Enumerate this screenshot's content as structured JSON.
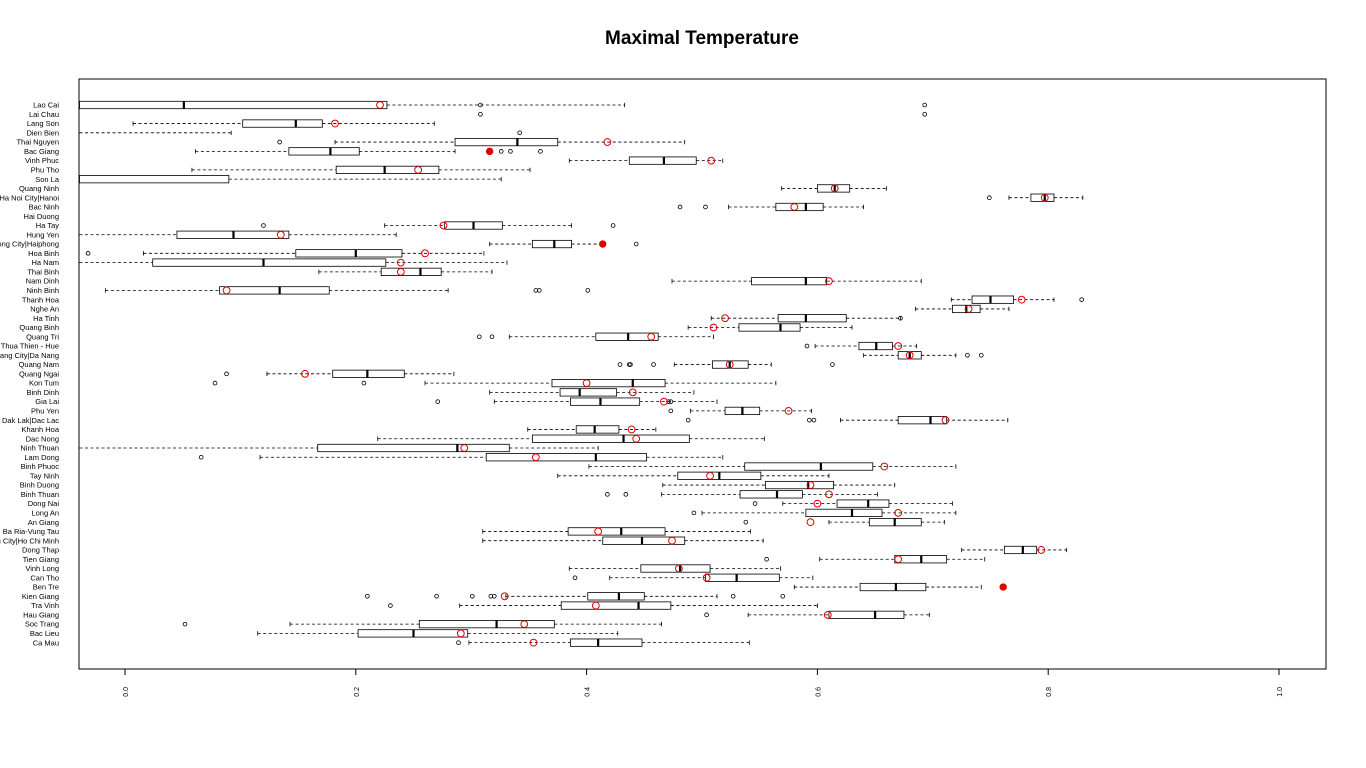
{
  "chart_data": {
    "type": "boxplot",
    "orientation": "horizontal",
    "title": "Maximal Temperature",
    "xlabel": "",
    "ylabel": "",
    "xlim": [
      0,
      1
    ],
    "xticks": [
      "0.0",
      "0.2",
      "0.4",
      "0.6",
      "0.8",
      "1.0"
    ],
    "colors": {
      "box": "#000000",
      "median": "#000000",
      "mean_marker": "#e00000",
      "highlight": "#e00000"
    },
    "series": [
      {
        "name": "Lao Cai",
        "whisker_low": -0.05,
        "q1": -0.05,
        "median": 0.051,
        "q3": 0.227,
        "whisker_high": 0.433,
        "mean": 0.221,
        "outliers": [
          0.308,
          0.693
        ]
      },
      {
        "name": "Lai Chau",
        "whisker_low": null,
        "q1": null,
        "median": null,
        "q3": null,
        "whisker_high": null,
        "mean": null,
        "outliers": [
          0.308,
          0.693
        ]
      },
      {
        "name": "Lang Son",
        "whisker_low": 0.007,
        "q1": 0.102,
        "median": 0.148,
        "q3": 0.171,
        "whisker_high": 0.268,
        "mean": 0.182,
        "outliers": []
      },
      {
        "name": "Dien Bien",
        "whisker_low": -0.05,
        "q1": null,
        "median": null,
        "q3": null,
        "whisker_high": 0.092,
        "mean": null,
        "outliers": [
          0.342
        ]
      },
      {
        "name": "Thai Nguyen",
        "whisker_low": 0.182,
        "q1": 0.286,
        "median": 0.34,
        "q3": 0.375,
        "whisker_high": 0.485,
        "mean": 0.418,
        "outliers": [
          0.134
        ]
      },
      {
        "name": "Bac Giang",
        "whisker_low": 0.061,
        "q1": 0.142,
        "median": 0.178,
        "q3": 0.203,
        "whisker_high": 0.286,
        "mean": 0.316,
        "outliers": [
          0.326,
          0.334,
          0.36
        ]
      },
      {
        "name": "Vinh Phuc",
        "whisker_low": 0.385,
        "q1": 0.437,
        "median": 0.467,
        "q3": 0.495,
        "whisker_high": 0.518,
        "mean": 0.508,
        "outliers": []
      },
      {
        "name": "Phu Tho",
        "whisker_low": 0.058,
        "q1": 0.183,
        "median": 0.225,
        "q3": 0.272,
        "whisker_high": 0.351,
        "mean": 0.254,
        "outliers": []
      },
      {
        "name": "Son La",
        "whisker_low": -0.05,
        "q1": -0.05,
        "median": null,
        "q3": 0.09,
        "whisker_high": 0.326,
        "mean": null,
        "outliers": []
      },
      {
        "name": "Quang Ninh",
        "whisker_low": 0.569,
        "q1": 0.6,
        "median": 0.615,
        "q3": 0.628,
        "whisker_high": 0.66,
        "mean": 0.615,
        "outliers": []
      },
      {
        "name": "Ha Noi City|Hanoi",
        "whisker_low": 0.766,
        "q1": 0.785,
        "median": 0.797,
        "q3": 0.805,
        "whisker_high": 0.83,
        "mean": 0.797,
        "outliers": [
          0.749
        ]
      },
      {
        "name": "Bac Ninh",
        "whisker_low": 0.523,
        "q1": 0.564,
        "median": 0.59,
        "q3": 0.605,
        "whisker_high": 0.64,
        "mean": 0.58,
        "outliers": [
          0.481,
          0.503
        ]
      },
      {
        "name": "Hai Duong",
        "whisker_low": null,
        "q1": null,
        "median": null,
        "q3": null,
        "whisker_high": null,
        "mean": null,
        "outliers": []
      },
      {
        "name": "Ha Tay",
        "whisker_low": 0.225,
        "q1": 0.277,
        "median": 0.302,
        "q3": 0.327,
        "whisker_high": 0.387,
        "mean": 0.276,
        "outliers": [
          0.12,
          0.423
        ]
      },
      {
        "name": "Hung Yen",
        "whisker_low": -0.05,
        "q1": 0.045,
        "median": 0.094,
        "q3": 0.142,
        "whisker_high": 0.235,
        "mean": 0.135,
        "outliers": []
      },
      {
        "name": "Hai Phong City|Haiphong",
        "whisker_low": 0.316,
        "q1": 0.353,
        "median": 0.372,
        "q3": 0.387,
        "whisker_high": 0.413,
        "mean": 0.414,
        "outliers": [
          0.443
        ]
      },
      {
        "name": "Hoa Binh",
        "whisker_low": 0.016,
        "q1": 0.148,
        "median": 0.2,
        "q3": 0.24,
        "whisker_high": 0.311,
        "mean": 0.26,
        "outliers": [
          -0.032
        ]
      },
      {
        "name": "Ha Nam",
        "whisker_low": -0.05,
        "q1": 0.024,
        "median": 0.12,
        "q3": 0.226,
        "whisker_high": 0.331,
        "mean": 0.239,
        "outliers": []
      },
      {
        "name": "Thai Binh",
        "whisker_low": 0.168,
        "q1": 0.222,
        "median": 0.256,
        "q3": 0.274,
        "whisker_high": 0.318,
        "mean": 0.239,
        "outliers": []
      },
      {
        "name": "Nam Dinh",
        "whisker_low": 0.474,
        "q1": 0.543,
        "median": 0.59,
        "q3": 0.608,
        "whisker_high": 0.69,
        "mean": 0.61,
        "outliers": []
      },
      {
        "name": "Ninh Binh",
        "whisker_low": -0.017,
        "q1": 0.082,
        "median": 0.134,
        "q3": 0.177,
        "whisker_high": 0.28,
        "mean": 0.088,
        "outliers": [
          0.356,
          0.359,
          0.401
        ]
      },
      {
        "name": "Thanh Hoa",
        "whisker_low": 0.716,
        "q1": 0.734,
        "median": 0.75,
        "q3": 0.77,
        "whisker_high": 0.805,
        "mean": 0.777,
        "outliers": [
          0.829
        ]
      },
      {
        "name": "Nghe An",
        "whisker_low": 0.685,
        "q1": 0.717,
        "median": 0.729,
        "q3": 0.741,
        "whisker_high": 0.766,
        "mean": 0.731,
        "outliers": []
      },
      {
        "name": "Ha Tinh",
        "whisker_low": 0.508,
        "q1": 0.566,
        "median": 0.59,
        "q3": 0.625,
        "whisker_high": 0.672,
        "mean": 0.52,
        "outliers": [
          0.672
        ]
      },
      {
        "name": "Quang Binh",
        "whisker_low": 0.488,
        "q1": 0.532,
        "median": 0.568,
        "q3": 0.585,
        "whisker_high": 0.63,
        "mean": 0.51,
        "outliers": []
      },
      {
        "name": "Quang Tri",
        "whisker_low": 0.333,
        "q1": 0.408,
        "median": 0.436,
        "q3": 0.462,
        "whisker_high": 0.51,
        "mean": 0.456,
        "outliers": [
          0.307,
          0.318
        ]
      },
      {
        "name": "Thua Thien - Hue",
        "whisker_low": 0.598,
        "q1": 0.636,
        "median": 0.651,
        "q3": 0.665,
        "whisker_high": 0.686,
        "mean": 0.67,
        "outliers": [
          0.591
        ]
      },
      {
        "name": "Da Nang City|Da Nang",
        "whisker_low": 0.64,
        "q1": 0.67,
        "median": 0.68,
        "q3": 0.69,
        "whisker_high": 0.72,
        "mean": 0.68,
        "outliers": [
          0.73,
          0.742
        ]
      },
      {
        "name": "Quang Nam",
        "whisker_low": 0.476,
        "q1": 0.509,
        "median": 0.524,
        "q3": 0.54,
        "whisker_high": 0.56,
        "mean": 0.524,
        "outliers": [
          0.429,
          0.437,
          0.438,
          0.458,
          0.613
        ]
      },
      {
        "name": "Quang Ngai",
        "whisker_low": 0.123,
        "q1": 0.18,
        "median": 0.21,
        "q3": 0.242,
        "whisker_high": 0.285,
        "mean": 0.156,
        "outliers": [
          0.088
        ]
      },
      {
        "name": "Kon Tum",
        "whisker_low": 0.26,
        "q1": 0.37,
        "median": 0.44,
        "q3": 0.468,
        "whisker_high": 0.564,
        "mean": 0.4,
        "outliers": [
          0.078,
          0.207
        ]
      },
      {
        "name": "Binh Dinh",
        "whisker_low": 0.316,
        "q1": 0.377,
        "median": 0.394,
        "q3": 0.426,
        "whisker_high": 0.493,
        "mean": 0.44,
        "outliers": []
      },
      {
        "name": "Gia Lai",
        "whisker_low": 0.32,
        "q1": 0.386,
        "median": 0.412,
        "q3": 0.446,
        "whisker_high": 0.513,
        "mean": 0.467,
        "outliers": [
          0.271,
          0.471,
          0.473
        ]
      },
      {
        "name": "Phu Yen",
        "whisker_low": 0.49,
        "q1": 0.52,
        "median": 0.535,
        "q3": 0.55,
        "whisker_high": 0.595,
        "mean": 0.575,
        "outliers": [
          0.473
        ]
      },
      {
        "name": "Dak Lak|Dac Lac",
        "whisker_low": 0.62,
        "q1": 0.67,
        "median": 0.698,
        "q3": 0.712,
        "whisker_high": 0.765,
        "mean": 0.711,
        "outliers": [
          0.488,
          0.593,
          0.597
        ]
      },
      {
        "name": "Khanh Hoa",
        "whisker_low": 0.349,
        "q1": 0.391,
        "median": 0.407,
        "q3": 0.428,
        "whisker_high": 0.46,
        "mean": 0.439,
        "outliers": []
      },
      {
        "name": "Dac Nong",
        "whisker_low": 0.219,
        "q1": 0.353,
        "median": 0.432,
        "q3": 0.489,
        "whisker_high": 0.554,
        "mean": 0.443,
        "outliers": []
      },
      {
        "name": "Ninh Thuan",
        "whisker_low": -0.05,
        "q1": 0.167,
        "median": 0.288,
        "q3": 0.333,
        "whisker_high": 0.41,
        "mean": 0.294,
        "outliers": []
      },
      {
        "name": "Lam Dong",
        "whisker_low": 0.117,
        "q1": 0.313,
        "median": 0.408,
        "q3": 0.452,
        "whisker_high": 0.518,
        "mean": 0.356,
        "outliers": [
          0.066
        ]
      },
      {
        "name": "Binh Phuoc",
        "whisker_low": 0.402,
        "q1": 0.537,
        "median": 0.603,
        "q3": 0.648,
        "whisker_high": 0.72,
        "mean": 0.658,
        "outliers": []
      },
      {
        "name": "Tay Ninh",
        "whisker_low": 0.375,
        "q1": 0.479,
        "median": 0.515,
        "q3": 0.551,
        "whisker_high": 0.61,
        "mean": 0.507,
        "outliers": []
      },
      {
        "name": "Binh Duong",
        "whisker_low": 0.466,
        "q1": 0.555,
        "median": 0.592,
        "q3": 0.614,
        "whisker_high": 0.667,
        "mean": 0.594,
        "outliers": []
      },
      {
        "name": "Binh Thuan",
        "whisker_low": 0.465,
        "q1": 0.533,
        "median": 0.565,
        "q3": 0.587,
        "whisker_high": 0.652,
        "mean": 0.61,
        "outliers": [
          0.418,
          0.434
        ]
      },
      {
        "name": "Dong Nai",
        "whisker_low": 0.57,
        "q1": 0.617,
        "median": 0.644,
        "q3": 0.662,
        "whisker_high": 0.717,
        "mean": 0.6,
        "outliers": [
          0.546
        ]
      },
      {
        "name": "Long An",
        "whisker_low": 0.5,
        "q1": 0.59,
        "median": 0.63,
        "q3": 0.656,
        "whisker_high": 0.72,
        "mean": 0.67,
        "outliers": [
          0.493
        ]
      },
      {
        "name": "An Giang",
        "whisker_low": 0.61,
        "q1": 0.645,
        "median": 0.667,
        "q3": 0.69,
        "whisker_high": 0.71,
        "mean": 0.594,
        "outliers": [
          0.538
        ]
      },
      {
        "name": "Ba Ria-Vung Tau",
        "whisker_low": 0.31,
        "q1": 0.384,
        "median": 0.43,
        "q3": 0.468,
        "whisker_high": 0.542,
        "mean": 0.41,
        "outliers": []
      },
      {
        "name": "Ho Chi Minh City|Ho Chi Minh",
        "whisker_low": 0.31,
        "q1": 0.414,
        "median": 0.448,
        "q3": 0.485,
        "whisker_high": 0.553,
        "mean": 0.474,
        "outliers": []
      },
      {
        "name": "Dong Thap",
        "whisker_low": 0.725,
        "q1": 0.762,
        "median": 0.778,
        "q3": 0.79,
        "whisker_high": 0.816,
        "mean": 0.794,
        "outliers": []
      },
      {
        "name": "Tien Giang",
        "whisker_low": 0.602,
        "q1": 0.667,
        "median": 0.69,
        "q3": 0.712,
        "whisker_high": 0.745,
        "mean": 0.67,
        "outliers": [
          0.556
        ]
      },
      {
        "name": "Vinh Long",
        "whisker_low": 0.385,
        "q1": 0.447,
        "median": 0.481,
        "q3": 0.507,
        "whisker_high": 0.568,
        "mean": 0.48,
        "outliers": []
      },
      {
        "name": "Can Tho",
        "whisker_low": 0.42,
        "q1": 0.503,
        "median": 0.53,
        "q3": 0.567,
        "whisker_high": 0.596,
        "mean": 0.504,
        "outliers": [
          0.39
        ]
      },
      {
        "name": "Ben Tre",
        "whisker_low": 0.58,
        "q1": 0.637,
        "median": 0.668,
        "q3": 0.694,
        "whisker_high": 0.742,
        "mean": 0.761,
        "outliers": []
      },
      {
        "name": "Kien Giang",
        "whisker_low": 0.33,
        "q1": 0.401,
        "median": 0.428,
        "q3": 0.45,
        "whisker_high": 0.513,
        "mean": 0.329,
        "outliers": [
          0.21,
          0.27,
          0.301,
          0.317,
          0.32,
          0.527,
          0.57
        ]
      },
      {
        "name": "Tra Vinh",
        "whisker_low": 0.29,
        "q1": 0.378,
        "median": 0.445,
        "q3": 0.473,
        "whisker_high": 0.6,
        "mean": 0.408,
        "outliers": [
          0.23
        ]
      },
      {
        "name": "Hau Giang",
        "whisker_low": 0.54,
        "q1": 0.61,
        "median": 0.65,
        "q3": 0.675,
        "whisker_high": 0.697,
        "mean": 0.609,
        "outliers": [
          0.504
        ]
      },
      {
        "name": "Soc Trang",
        "whisker_low": 0.143,
        "q1": 0.255,
        "median": 0.322,
        "q3": 0.372,
        "whisker_high": 0.465,
        "mean": 0.346,
        "outliers": [
          0.052
        ]
      },
      {
        "name": "Bac Lieu",
        "whisker_low": 0.115,
        "q1": 0.202,
        "median": 0.25,
        "q3": 0.297,
        "whisker_high": 0.427,
        "mean": 0.291,
        "outliers": []
      },
      {
        "name": "Ca Mau",
        "whisker_low": 0.298,
        "q1": 0.386,
        "median": 0.41,
        "q3": 0.448,
        "whisker_high": 0.541,
        "mean": 0.354,
        "outliers": [
          0.289
        ]
      }
    ]
  }
}
